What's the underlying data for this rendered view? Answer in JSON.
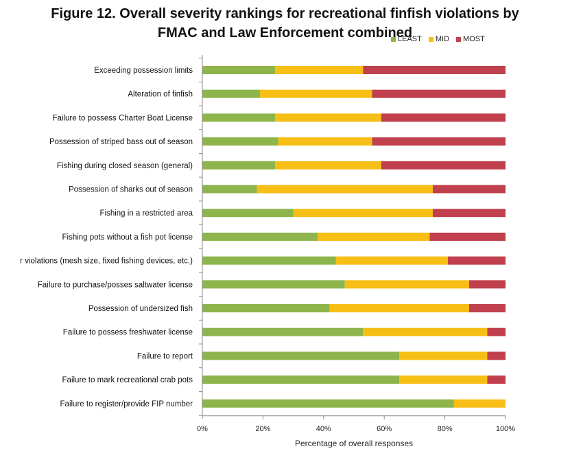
{
  "chart_data": {
    "type": "bar",
    "orientation": "horizontal",
    "stacked": true,
    "title_lines": [
      "Figure 12. Overall severity rankings for recreational finfish  violations by",
      "FMAC and Law Enforcement combined"
    ],
    "xlabel": "Percentage of overall responses",
    "ylabel": "",
    "xlim": [
      0,
      100
    ],
    "x_ticks": [
      "0%",
      "20%",
      "40%",
      "60%",
      "80%",
      "100%"
    ],
    "grid": false,
    "legend_position": "top-right",
    "categories": [
      "Exceeding possession limits",
      "Alteration of finfish",
      "Failure to possess Charter Boat License",
      "Possession of striped bass out of season",
      "Fishing during closed season (general)",
      "Possession of sharks out of season",
      "Fishing in a restricted area",
      "Fishing pots without a fish pot license",
      "r violations (mesh size, fixed fishing devices, etc.)",
      "Failure to purchase/posses saltwater license",
      "Possession of undersized fish",
      "Failure to possess freshwater license",
      "Failure to report",
      "Failure to mark recreational crab pots",
      "Failure to register/provide FIP number"
    ],
    "series": [
      {
        "name": "LEAST",
        "color": "#8db54b",
        "values": [
          24,
          19,
          24,
          25,
          24,
          18,
          30,
          38,
          44,
          47,
          42,
          53,
          65,
          65,
          83
        ]
      },
      {
        "name": "MID",
        "color": "#f7be16",
        "values": [
          29,
          37,
          35,
          31,
          35,
          58,
          46,
          37,
          37,
          41,
          46,
          41,
          29,
          29,
          17
        ]
      },
      {
        "name": "MOST",
        "color": "#c0404e",
        "values": [
          47,
          44,
          41,
          44,
          41,
          24,
          24,
          25,
          19,
          12,
          12,
          6,
          6,
          6,
          0
        ]
      }
    ]
  }
}
